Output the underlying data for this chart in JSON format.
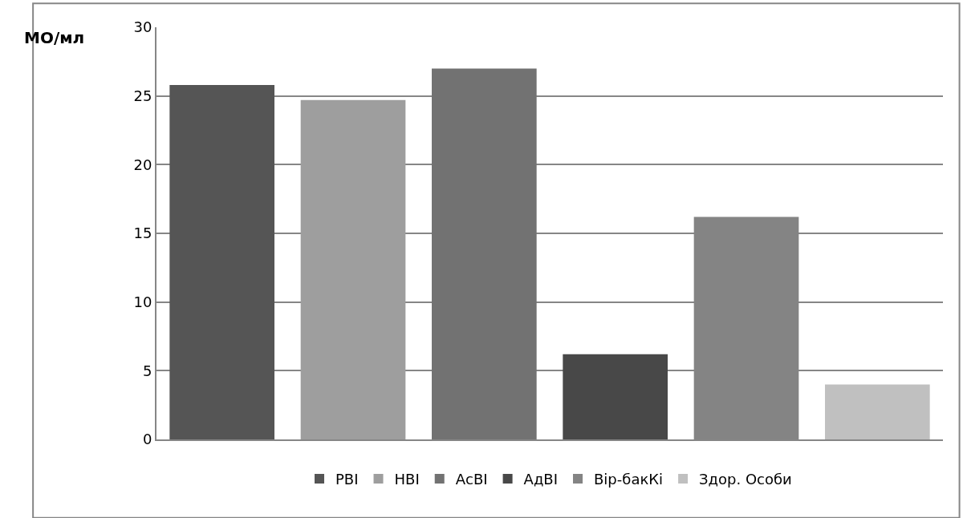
{
  "chart_data": {
    "type": "bar",
    "ylabel": "МО/мл",
    "categories": [
      null,
      null,
      null,
      null,
      null,
      null
    ],
    "series": [
      {
        "name": "РВІ",
        "color": "#555555",
        "values": [
          25.8,
          null,
          null,
          null,
          null,
          null
        ]
      },
      {
        "name": "НВІ",
        "color": "#9e9e9e",
        "values": [
          null,
          24.7,
          null,
          null,
          null,
          null
        ]
      },
      {
        "name": "АсВІ",
        "color": "#727272",
        "values": [
          null,
          null,
          27,
          null,
          null,
          null
        ]
      },
      {
        "name": "АдВІ",
        "color": "#484848",
        "values": [
          null,
          null,
          null,
          6.2,
          null,
          null
        ]
      },
      {
        "name": "Вір-бакКі",
        "color": "#848484",
        "values": [
          null,
          null,
          null,
          null,
          16.2,
          null
        ]
      },
      {
        "name": "Здор. Особи",
        "color": "#c0c0c0",
        "values": [
          null,
          null,
          null,
          null,
          null,
          4
        ]
      }
    ],
    "ylim": [
      0,
      30
    ],
    "yticks": [
      0,
      5,
      10,
      15,
      20,
      25,
      30
    ],
    "grid": "y",
    "legend": "bottom"
  }
}
